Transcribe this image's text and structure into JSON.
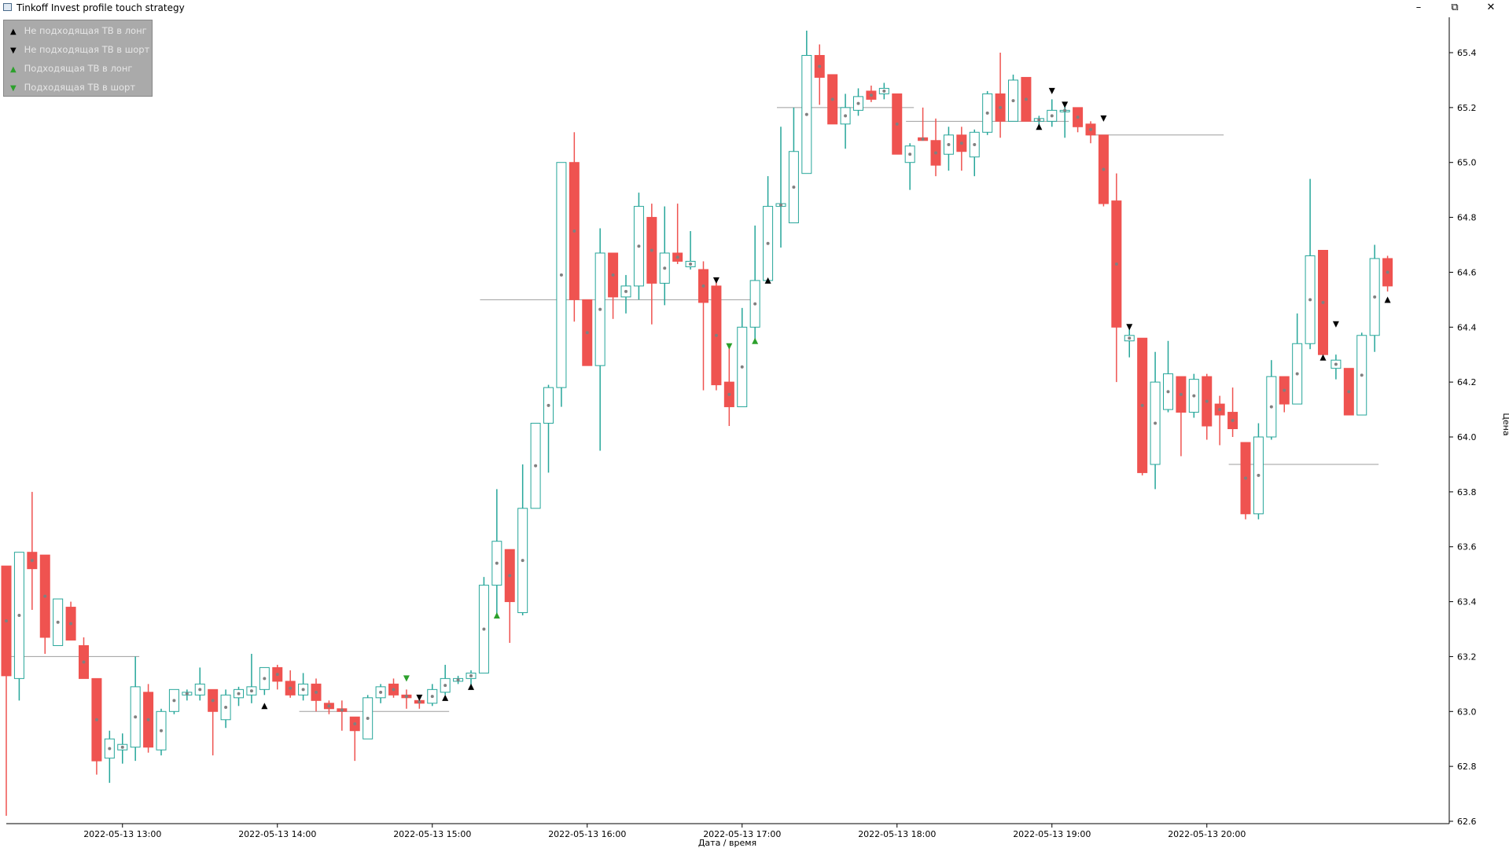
{
  "window": {
    "title": "Tinkoff Invest profile touch strategy"
  },
  "legend": {
    "items": [
      {
        "label": "Не подходящая ТВ в лонг",
        "symbol": "▲",
        "color": "#000000"
      },
      {
        "label": "Не подходящая ТВ в шорт",
        "symbol": "▼",
        "color": "#000000"
      },
      {
        "label": "Подходящая ТВ в лонг",
        "symbol": "▲",
        "color": "#2ca02c"
      },
      {
        "label": "Подходящая ТВ в шорт",
        "symbol": "▼",
        "color": "#2ca02c"
      }
    ]
  },
  "colors": {
    "up": "#26a69a",
    "down": "#ef5350",
    "level": "#9e9e9e",
    "marker_black": "#000000",
    "marker_green": "#2ca02c",
    "dot": "#808080"
  },
  "chart_data": {
    "type": "candlestick",
    "xlabel": "Дата / время",
    "ylabel": "Цена",
    "ylim": [
      62.6,
      65.5
    ],
    "y_ticks": [
      62.6,
      62.8,
      63.0,
      63.2,
      63.4,
      63.6,
      63.8,
      64.0,
      64.2,
      64.4,
      64.6,
      64.8,
      65.0,
      65.2,
      65.4
    ],
    "x_range": [
      "2022-05-13 12:15",
      "2022-05-13 21:10"
    ],
    "x_ticks": [
      "2022-05-13 13:00",
      "2022-05-13 14:00",
      "2022-05-13 15:00",
      "2022-05-13 16:00",
      "2022-05-13 17:00",
      "2022-05-13 18:00",
      "2022-05-13 19:00",
      "2022-05-13 20:00"
    ],
    "candles": [
      {
        "t": "12:15",
        "o": 63.53,
        "h": 63.53,
        "l": 62.62,
        "c": 63.13
      },
      {
        "t": "12:20",
        "o": 63.12,
        "h": 63.58,
        "l": 63.04,
        "c": 63.58
      },
      {
        "t": "12:25",
        "o": 63.58,
        "h": 63.8,
        "l": 63.37,
        "c": 63.52
      },
      {
        "t": "12:30",
        "o": 63.57,
        "h": 63.57,
        "l": 63.21,
        "c": 63.27
      },
      {
        "t": "12:35",
        "o": 63.24,
        "h": 63.41,
        "l": 63.24,
        "c": 63.41
      },
      {
        "t": "12:40",
        "o": 63.38,
        "h": 63.4,
        "l": 63.26,
        "c": 63.26
      },
      {
        "t": "12:45",
        "o": 63.24,
        "h": 63.27,
        "l": 63.12,
        "c": 63.12
      },
      {
        "t": "12:50",
        "o": 63.12,
        "h": 63.12,
        "l": 62.77,
        "c": 62.82
      },
      {
        "t": "12:55",
        "o": 62.83,
        "h": 62.93,
        "l": 62.74,
        "c": 62.9
      },
      {
        "t": "13:00",
        "o": 62.86,
        "h": 62.92,
        "l": 62.81,
        "c": 62.88
      },
      {
        "t": "13:05",
        "o": 62.87,
        "h": 63.2,
        "l": 62.82,
        "c": 63.09
      },
      {
        "t": "13:10",
        "o": 63.07,
        "h": 63.1,
        "l": 62.85,
        "c": 62.87
      },
      {
        "t": "13:15",
        "o": 62.86,
        "h": 63.01,
        "l": 62.84,
        "c": 63.0
      },
      {
        "t": "13:20",
        "o": 63.0,
        "h": 63.08,
        "l": 62.99,
        "c": 63.08
      },
      {
        "t": "13:25",
        "o": 63.06,
        "h": 63.08,
        "l": 63.04,
        "c": 63.07
      },
      {
        "t": "13:30",
        "o": 63.06,
        "h": 63.16,
        "l": 63.04,
        "c": 63.1
      },
      {
        "t": "13:35",
        "o": 63.08,
        "h": 63.08,
        "l": 62.84,
        "c": 63.0
      },
      {
        "t": "13:40",
        "o": 62.97,
        "h": 63.08,
        "l": 62.94,
        "c": 63.06
      },
      {
        "t": "13:45",
        "o": 63.05,
        "h": 63.09,
        "l": 63.02,
        "c": 63.08
      },
      {
        "t": "13:50",
        "o": 63.06,
        "h": 63.21,
        "l": 63.03,
        "c": 63.09
      },
      {
        "t": "13:55",
        "o": 63.08,
        "h": 63.16,
        "l": 63.06,
        "c": 63.16
      },
      {
        "t": "14:00",
        "o": 63.16,
        "h": 63.17,
        "l": 63.08,
        "c": 63.11
      },
      {
        "t": "14:05",
        "o": 63.11,
        "h": 63.15,
        "l": 63.05,
        "c": 63.06
      },
      {
        "t": "14:10",
        "o": 63.06,
        "h": 63.14,
        "l": 63.04,
        "c": 63.1
      },
      {
        "t": "14:15",
        "o": 63.1,
        "h": 63.12,
        "l": 63.0,
        "c": 63.04
      },
      {
        "t": "14:20",
        "o": 63.03,
        "h": 63.04,
        "l": 62.99,
        "c": 63.01
      },
      {
        "t": "14:25",
        "o": 63.01,
        "h": 63.04,
        "l": 62.93,
        "c": 63.0
      },
      {
        "t": "14:30",
        "o": 62.98,
        "h": 62.98,
        "l": 62.82,
        "c": 62.93
      },
      {
        "t": "14:35",
        "o": 62.9,
        "h": 63.06,
        "l": 62.9,
        "c": 63.05
      },
      {
        "t": "14:40",
        "o": 63.05,
        "h": 63.1,
        "l": 63.03,
        "c": 63.09
      },
      {
        "t": "14:45",
        "o": 63.1,
        "h": 63.12,
        "l": 63.05,
        "c": 63.06
      },
      {
        "t": "14:50",
        "o": 63.06,
        "h": 63.08,
        "l": 63.01,
        "c": 63.05
      },
      {
        "t": "14:55",
        "o": 63.04,
        "h": 63.05,
        "l": 63.01,
        "c": 63.03
      },
      {
        "t": "15:00",
        "o": 63.03,
        "h": 63.1,
        "l": 63.02,
        "c": 63.08
      },
      {
        "t": "15:05",
        "o": 63.07,
        "h": 63.17,
        "l": 63.06,
        "c": 63.12
      },
      {
        "t": "15:10",
        "o": 63.11,
        "h": 63.13,
        "l": 63.1,
        "c": 63.12
      },
      {
        "t": "15:15",
        "o": 63.12,
        "h": 63.15,
        "l": 63.09,
        "c": 63.14
      },
      {
        "t": "15:20",
        "o": 63.14,
        "h": 63.49,
        "l": 63.14,
        "c": 63.46
      },
      {
        "t": "15:25",
        "o": 63.46,
        "h": 63.81,
        "l": 63.35,
        "c": 63.62
      },
      {
        "t": "15:30",
        "o": 63.59,
        "h": 63.59,
        "l": 63.25,
        "c": 63.4
      },
      {
        "t": "15:35",
        "o": 63.36,
        "h": 63.9,
        "l": 63.35,
        "c": 63.74
      },
      {
        "t": "15:40",
        "o": 63.74,
        "h": 64.05,
        "l": 63.74,
        "c": 64.05
      },
      {
        "t": "15:45",
        "o": 64.05,
        "h": 64.19,
        "l": 63.87,
        "c": 64.18
      },
      {
        "t": "15:50",
        "o": 64.18,
        "h": 65.0,
        "l": 64.11,
        "c": 65.0
      },
      {
        "t": "15:55",
        "o": 65.0,
        "h": 65.11,
        "l": 64.42,
        "c": 64.5
      },
      {
        "t": "16:00",
        "o": 64.5,
        "h": 64.5,
        "l": 64.26,
        "c": 64.26
      },
      {
        "t": "16:05",
        "o": 64.26,
        "h": 64.76,
        "l": 63.95,
        "c": 64.67
      },
      {
        "t": "16:10",
        "o": 64.67,
        "h": 64.67,
        "l": 64.43,
        "c": 64.51
      },
      {
        "t": "16:15",
        "o": 64.51,
        "h": 64.59,
        "l": 64.45,
        "c": 64.55
      },
      {
        "t": "16:20",
        "o": 64.55,
        "h": 64.89,
        "l": 64.5,
        "c": 64.84
      },
      {
        "t": "16:25",
        "o": 64.8,
        "h": 64.85,
        "l": 64.41,
        "c": 64.56
      },
      {
        "t": "16:30",
        "o": 64.56,
        "h": 64.84,
        "l": 64.48,
        "c": 64.67
      },
      {
        "t": "16:35",
        "o": 64.67,
        "h": 64.85,
        "l": 64.63,
        "c": 64.64
      },
      {
        "t": "16:40",
        "o": 64.62,
        "h": 64.75,
        "l": 64.61,
        "c": 64.64
      },
      {
        "t": "16:45",
        "o": 64.61,
        "h": 64.64,
        "l": 64.17,
        "c": 64.49
      },
      {
        "t": "16:50",
        "o": 64.55,
        "h": 64.58,
        "l": 64.17,
        "c": 64.19
      },
      {
        "t": "16:55",
        "o": 64.2,
        "h": 64.33,
        "l": 64.04,
        "c": 64.11
      },
      {
        "t": "17:00",
        "o": 64.11,
        "h": 64.47,
        "l": 64.11,
        "c": 64.4
      },
      {
        "t": "17:05",
        "o": 64.4,
        "h": 64.77,
        "l": 64.35,
        "c": 64.57
      },
      {
        "t": "17:10",
        "o": 64.57,
        "h": 64.95,
        "l": 64.57,
        "c": 64.84
      },
      {
        "t": "17:15",
        "o": 64.84,
        "h": 65.13,
        "l": 64.69,
        "c": 64.85
      },
      {
        "t": "17:20",
        "o": 64.78,
        "h": 65.2,
        "l": 64.78,
        "c": 65.04
      },
      {
        "t": "17:25",
        "o": 64.96,
        "h": 65.48,
        "l": 64.96,
        "c": 65.39
      },
      {
        "t": "17:30",
        "o": 65.39,
        "h": 65.43,
        "l": 65.21,
        "c": 65.31
      },
      {
        "t": "17:35",
        "o": 65.32,
        "h": 65.32,
        "l": 65.14,
        "c": 65.14
      },
      {
        "t": "17:40",
        "o": 65.14,
        "h": 65.25,
        "l": 65.05,
        "c": 65.2
      },
      {
        "t": "17:45",
        "o": 65.19,
        "h": 65.27,
        "l": 65.17,
        "c": 65.24
      },
      {
        "t": "17:50",
        "o": 65.26,
        "h": 65.28,
        "l": 65.22,
        "c": 65.23
      },
      {
        "t": "17:55",
        "o": 65.25,
        "h": 65.29,
        "l": 65.23,
        "c": 65.27
      },
      {
        "t": "18:00",
        "o": 65.25,
        "h": 65.25,
        "l": 65.03,
        "c": 65.03
      },
      {
        "t": "18:05",
        "o": 65.0,
        "h": 65.07,
        "l": 64.9,
        "c": 65.06
      },
      {
        "t": "18:10",
        "o": 65.09,
        "h": 65.2,
        "l": 65.08,
        "c": 65.08
      },
      {
        "t": "18:15",
        "o": 65.08,
        "h": 65.16,
        "l": 64.95,
        "c": 64.99
      },
      {
        "t": "18:20",
        "o": 65.03,
        "h": 65.13,
        "l": 64.97,
        "c": 65.1
      },
      {
        "t": "18:25",
        "o": 65.1,
        "h": 65.13,
        "l": 64.97,
        "c": 65.04
      },
      {
        "t": "18:30",
        "o": 65.02,
        "h": 65.12,
        "l": 64.95,
        "c": 65.11
      },
      {
        "t": "18:35",
        "o": 65.11,
        "h": 65.26,
        "l": 65.1,
        "c": 65.25
      },
      {
        "t": "18:40",
        "o": 65.25,
        "h": 65.4,
        "l": 65.09,
        "c": 65.15
      },
      {
        "t": "18:45",
        "o": 65.15,
        "h": 65.32,
        "l": 65.15,
        "c": 65.3
      },
      {
        "t": "18:50",
        "o": 65.31,
        "h": 65.31,
        "l": 65.15,
        "c": 65.15
      },
      {
        "t": "18:55",
        "o": 65.15,
        "h": 65.17,
        "l": 65.13,
        "c": 65.16
      },
      {
        "t": "19:00",
        "o": 65.15,
        "h": 65.23,
        "l": 65.13,
        "c": 65.19
      },
      {
        "t": "19:05",
        "o": 65.19,
        "h": 65.22,
        "l": 65.09,
        "c": 65.19
      },
      {
        "t": "19:10",
        "o": 65.2,
        "h": 65.2,
        "l": 65.11,
        "c": 65.13
      },
      {
        "t": "19:15",
        "o": 65.14,
        "h": 65.15,
        "l": 65.07,
        "c": 65.1
      },
      {
        "t": "19:20",
        "o": 65.1,
        "h": 65.1,
        "l": 64.84,
        "c": 64.85
      },
      {
        "t": "19:25",
        "o": 64.86,
        "h": 64.96,
        "l": 64.2,
        "c": 64.4
      },
      {
        "t": "19:30",
        "o": 64.35,
        "h": 64.4,
        "l": 64.29,
        "c": 64.37
      },
      {
        "t": "19:35",
        "o": 64.36,
        "h": 64.36,
        "l": 63.86,
        "c": 63.87
      },
      {
        "t": "19:40",
        "o": 63.9,
        "h": 64.31,
        "l": 63.81,
        "c": 64.2
      },
      {
        "t": "19:45",
        "o": 64.1,
        "h": 64.35,
        "l": 64.09,
        "c": 64.23
      },
      {
        "t": "19:50",
        "o": 64.22,
        "h": 64.22,
        "l": 63.93,
        "c": 64.09
      },
      {
        "t": "19:55",
        "o": 64.09,
        "h": 64.23,
        "l": 64.07,
        "c": 64.21
      },
      {
        "t": "20:00",
        "o": 64.22,
        "h": 64.23,
        "l": 63.99,
        "c": 64.04
      },
      {
        "t": "20:05",
        "o": 64.12,
        "h": 64.15,
        "l": 63.97,
        "c": 64.08
      },
      {
        "t": "20:10",
        "o": 64.09,
        "h": 64.18,
        "l": 64.0,
        "c": 64.03
      },
      {
        "t": "20:15",
        "o": 63.98,
        "h": 63.98,
        "l": 63.7,
        "c": 63.72
      },
      {
        "t": "20:20",
        "o": 63.72,
        "h": 64.05,
        "l": 63.7,
        "c": 64.0
      },
      {
        "t": "20:25",
        "o": 64.0,
        "h": 64.28,
        "l": 63.99,
        "c": 64.22
      },
      {
        "t": "20:30",
        "o": 64.22,
        "h": 64.22,
        "l": 64.09,
        "c": 64.12
      },
      {
        "t": "20:35",
        "o": 64.12,
        "h": 64.45,
        "l": 64.12,
        "c": 64.34
      },
      {
        "t": "20:40",
        "o": 64.34,
        "h": 64.94,
        "l": 64.32,
        "c": 64.66
      },
      {
        "t": "20:45",
        "o": 64.68,
        "h": 64.68,
        "l": 64.3,
        "c": 64.3
      },
      {
        "t": "20:50",
        "o": 64.25,
        "h": 64.3,
        "l": 64.21,
        "c": 64.28
      },
      {
        "t": "20:55",
        "o": 64.25,
        "h": 64.25,
        "l": 64.08,
        "c": 64.08
      },
      {
        "t": "21:00",
        "o": 64.08,
        "h": 64.38,
        "l": 64.08,
        "c": 64.37
      },
      {
        "t": "21:05",
        "o": 64.37,
        "h": 64.7,
        "l": 64.31,
        "c": 64.65
      },
      {
        "t": "21:10",
        "o": 64.65,
        "h": 64.66,
        "l": 64.53,
        "c": 64.55
      }
    ],
    "levels": [
      {
        "price": 63.2,
        "from": "12:15",
        "to": "13:05"
      },
      {
        "price": 63.0,
        "from": "14:10",
        "to": "15:05"
      },
      {
        "price": 64.5,
        "from": "15:20",
        "to": "17:05"
      },
      {
        "price": 65.2,
        "from": "17:15",
        "to": "18:05"
      },
      {
        "price": 65.15,
        "from": "18:05",
        "to": "19:05"
      },
      {
        "price": 65.1,
        "from": "19:15",
        "to": "20:05"
      },
      {
        "price": 63.9,
        "from": "20:10",
        "to": "21:05"
      }
    ],
    "markers": [
      {
        "t": "13:55",
        "price": 63.02,
        "kind": "long",
        "suitable": false
      },
      {
        "t": "14:50",
        "price": 63.12,
        "kind": "short",
        "suitable": true
      },
      {
        "t": "14:55",
        "price": 63.05,
        "kind": "short",
        "suitable": false
      },
      {
        "t": "15:05",
        "price": 63.05,
        "kind": "long",
        "suitable": false
      },
      {
        "t": "15:15",
        "price": 63.09,
        "kind": "long",
        "suitable": false
      },
      {
        "t": "15:25",
        "price": 63.35,
        "kind": "long",
        "suitable": true
      },
      {
        "t": "16:50",
        "price": 64.57,
        "kind": "short",
        "suitable": false
      },
      {
        "t": "16:55",
        "price": 64.33,
        "kind": "short",
        "suitable": true
      },
      {
        "t": "17:05",
        "price": 64.35,
        "kind": "long",
        "suitable": true
      },
      {
        "t": "17:10",
        "price": 64.57,
        "kind": "long",
        "suitable": false
      },
      {
        "t": "18:55",
        "price": 65.13,
        "kind": "long",
        "suitable": false
      },
      {
        "t": "19:00",
        "price": 65.26,
        "kind": "short",
        "suitable": false
      },
      {
        "t": "19:05",
        "price": 65.21,
        "kind": "short",
        "suitable": false
      },
      {
        "t": "19:20",
        "price": 65.16,
        "kind": "short",
        "suitable": false
      },
      {
        "t": "19:30",
        "price": 64.4,
        "kind": "short",
        "suitable": false
      },
      {
        "t": "20:45",
        "price": 64.29,
        "kind": "long",
        "suitable": false
      },
      {
        "t": "20:50",
        "price": 64.41,
        "kind": "short",
        "suitable": false
      },
      {
        "t": "21:10",
        "price": 64.5,
        "kind": "long",
        "suitable": false
      }
    ]
  }
}
